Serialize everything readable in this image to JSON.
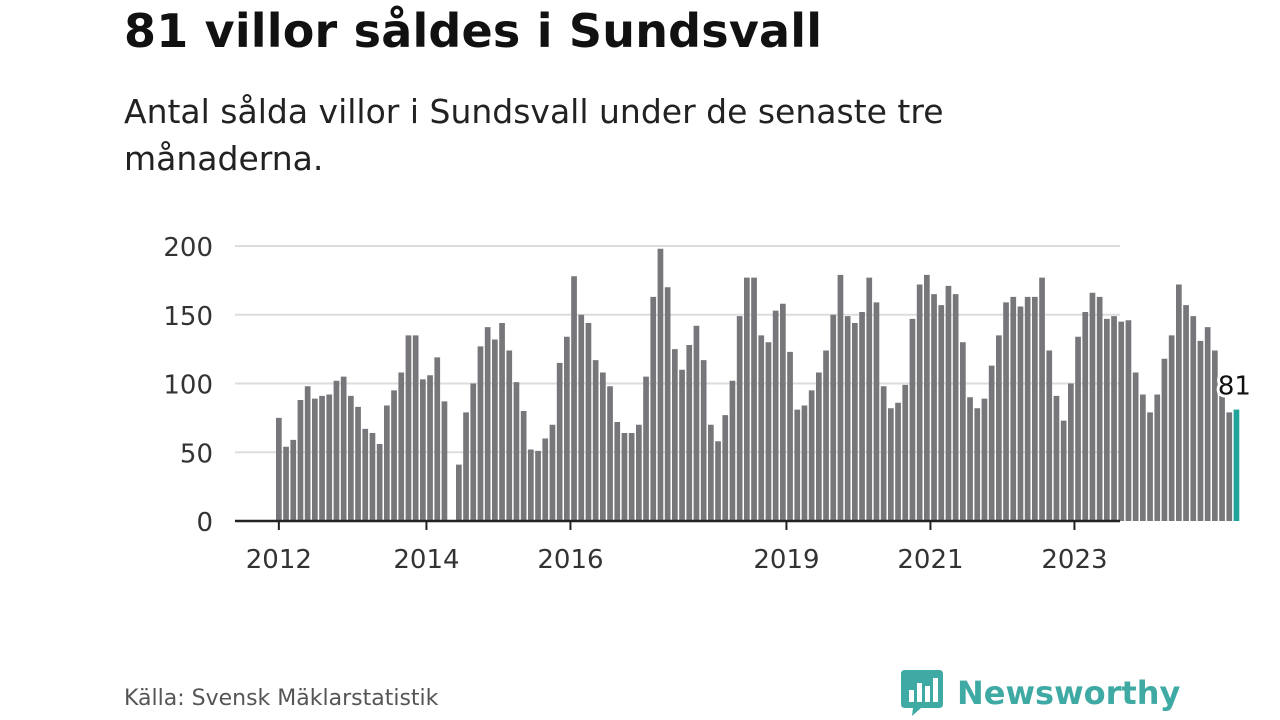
{
  "title": "81 villor såldes i Sundsvall",
  "subtitle": "Antal sålda villor i Sundsvall under de senaste tre månaderna.",
  "source": "Källa: Svensk Mäklarstatistik",
  "brand": {
    "name": "Newsworthy",
    "icon": "bar-chart-speech-bubble-icon",
    "color": "#3fa9a3"
  },
  "colors": {
    "bar": "#77767b",
    "highlight": "#1fa39b",
    "grid": "#dddddd",
    "axis": "#222222"
  },
  "chart_data": {
    "type": "bar",
    "title": "81 villor såldes i Sundsvall",
    "subtitle": "Antal sålda villor i Sundsvall under de senaste tre månaderna.",
    "xlabel": "",
    "ylabel": "",
    "ylim": [
      0,
      200
    ],
    "yticks": [
      0,
      50,
      100,
      150,
      200
    ],
    "xticks": [
      "2012",
      "2014",
      "2016",
      "2019",
      "2021",
      "2023"
    ],
    "grid": true,
    "legend": "none",
    "annotation": {
      "text": "81",
      "target": "last bar"
    },
    "values": [
      75,
      54,
      59,
      88,
      98,
      89,
      91,
      92,
      102,
      105,
      91,
      83,
      67,
      64,
      56,
      84,
      95,
      108,
      135,
      135,
      103,
      106,
      119,
      87,
      0,
      41,
      79,
      100,
      127,
      141,
      132,
      144,
      124,
      101,
      80,
      52,
      51,
      60,
      70,
      115,
      134,
      178,
      150,
      144,
      117,
      108,
      98,
      72,
      64,
      64,
      70,
      105,
      163,
      198,
      170,
      125,
      110,
      128,
      142,
      117,
      70,
      58,
      77,
      102,
      149,
      177,
      177,
      135,
      130,
      153,
      158,
      123,
      81,
      84,
      95,
      108,
      124,
      150,
      179,
      149,
      144,
      152,
      177,
      159,
      98,
      82,
      86,
      99,
      147,
      172,
      179,
      165,
      157,
      171,
      165,
      130,
      90,
      82,
      89,
      113,
      135,
      159,
      163,
      156,
      163,
      163,
      177,
      124,
      91,
      73,
      100,
      134,
      152,
      166,
      163,
      147,
      149,
      145,
      146,
      108,
      92,
      79,
      92,
      118,
      135,
      172,
      157,
      149,
      131,
      141,
      124,
      91,
      79,
      81
    ]
  }
}
